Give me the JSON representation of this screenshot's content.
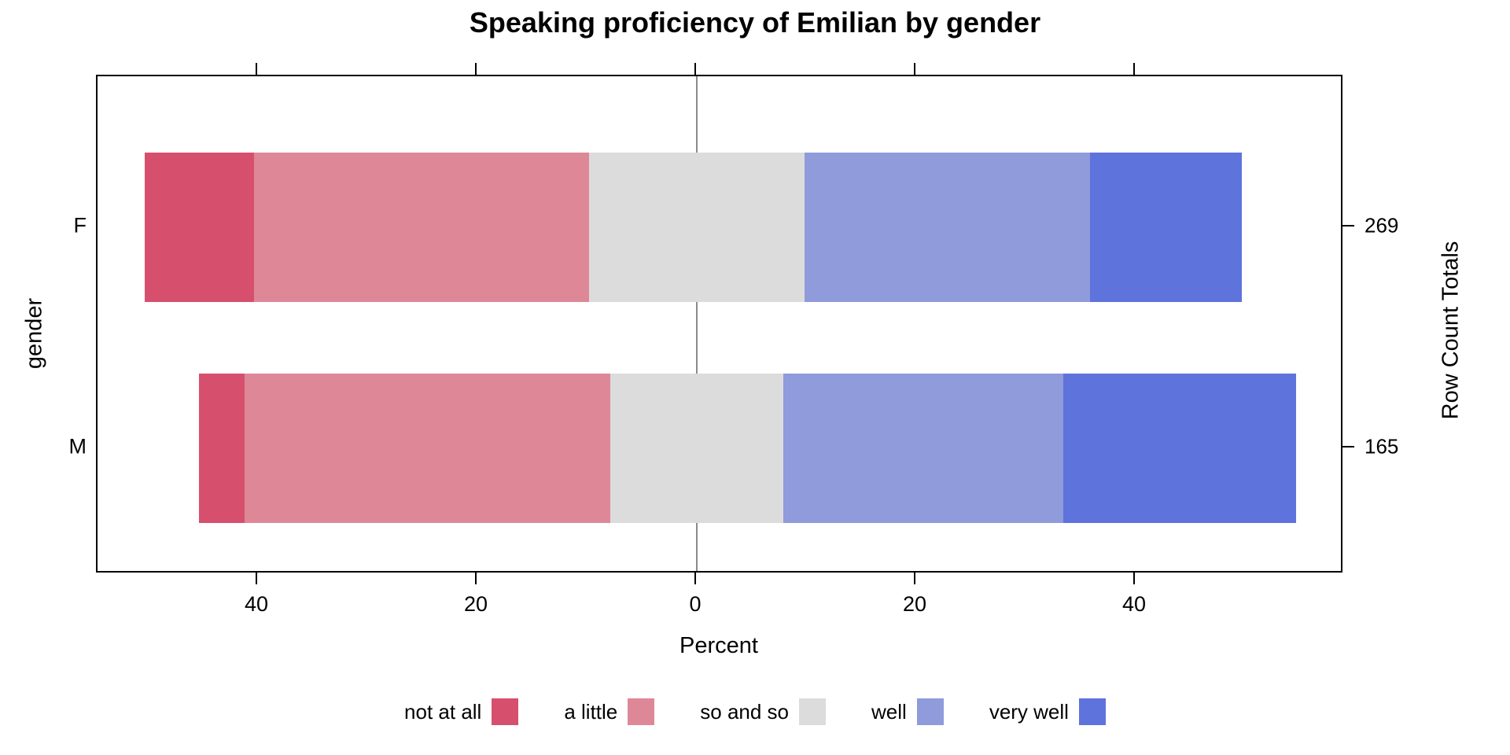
{
  "chart_data": {
    "type": "bar",
    "subtype": "diverging-stacked-likert",
    "title": "Speaking proficiency of Emilian by gender",
    "xlabel": "Percent",
    "ylabel_left": "gender",
    "ylabel_right": "Row Count Totals",
    "categories": [
      "F",
      "M"
    ],
    "row_totals": [
      "269",
      "165"
    ],
    "levels": [
      "not at all",
      "a little",
      "so and so",
      "well",
      "very well"
    ],
    "colors": [
      "#D6506E",
      "#DE8897",
      "#DCDCDC",
      "#8F9BDB",
      "#5E73DC"
    ],
    "series": [
      {
        "name": "not at all",
        "values": [
          10.0,
          4.2
        ]
      },
      {
        "name": "a little",
        "values": [
          30.5,
          33.3
        ]
      },
      {
        "name": "so and so",
        "values": [
          19.7,
          15.8
        ]
      },
      {
        "name": "well",
        "values": [
          26.0,
          25.5
        ]
      },
      {
        "name": "very well",
        "values": [
          13.8,
          21.2
        ]
      }
    ],
    "neutral_level": "so and so",
    "x_ticks": [
      {
        "value": -40,
        "label": "40"
      },
      {
        "value": -20,
        "label": "20"
      },
      {
        "value": 0,
        "label": "0"
      },
      {
        "value": 20,
        "label": "20"
      },
      {
        "value": 40,
        "label": "40"
      }
    ],
    "xlim": [
      -54.6,
      59.0
    ],
    "zero_reference_line": true,
    "zero_line_color": "#8A8A8A",
    "axis_color": "#000000",
    "legend_position": "bottom",
    "grid": "off"
  },
  "legend": {
    "items": [
      {
        "label": "not at all",
        "color": "#D6506E"
      },
      {
        "label": "a little",
        "color": "#DE8897"
      },
      {
        "label": "so and so",
        "color": "#DCDCDC"
      },
      {
        "label": "well",
        "color": "#8F9BDB"
      },
      {
        "label": "very well",
        "color": "#5E73DC"
      }
    ]
  }
}
